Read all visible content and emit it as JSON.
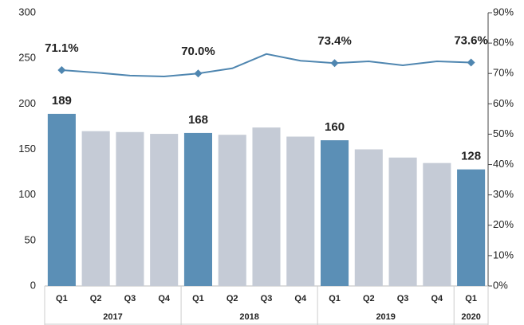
{
  "chart_data": {
    "type": "bar",
    "categories": [
      "Q1",
      "Q2",
      "Q3",
      "Q4",
      "Q1",
      "Q2",
      "Q3",
      "Q4",
      "Q1",
      "Q2",
      "Q3",
      "Q4",
      "Q1"
    ],
    "years": [
      "2017",
      null,
      null,
      null,
      "2018",
      null,
      null,
      null,
      "2019",
      null,
      null,
      null,
      "2020"
    ],
    "series": [
      {
        "type": "bar",
        "values": [
          189,
          170,
          169,
          167,
          168,
          166,
          174,
          164,
          160,
          150,
          141,
          135,
          128
        ],
        "value_labels": [
          "189",
          null,
          null,
          null,
          "168",
          null,
          null,
          null,
          "160",
          null,
          null,
          null,
          "128"
        ],
        "colors": [
          "#5b8fb6",
          "#c5cbd6",
          "#c5cbd6",
          "#c5cbd6",
          "#5b8fb6",
          "#c5cbd6",
          "#c5cbd6",
          "#c5cbd6",
          "#5b8fb6",
          "#c5cbd6",
          "#c5cbd6",
          "#c5cbd6",
          "#5b8fb6"
        ]
      },
      {
        "type": "line",
        "axis": "y2",
        "color": "#4f86b0",
        "values": [
          71.1,
          70.3,
          69.3,
          69.0,
          70.0,
          71.7,
          76.4,
          74.2,
          73.4,
          74.0,
          72.7,
          74.0,
          73.6
        ],
        "value_labels": [
          "71.1%",
          null,
          null,
          null,
          "70.0%",
          null,
          null,
          null,
          "73.4%",
          null,
          null,
          null,
          "73.6%"
        ]
      }
    ],
    "ylim": [
      0,
      300
    ],
    "yticks": [
      0,
      50,
      100,
      150,
      200,
      250,
      300
    ],
    "y2lim": [
      0,
      90
    ],
    "y2ticks": [
      {
        "value": 0,
        "label": "0%"
      },
      {
        "value": 10,
        "label": "10%"
      },
      {
        "value": 20,
        "label": "20%"
      },
      {
        "value": 30,
        "label": "30%"
      },
      {
        "value": 40,
        "label": "40%"
      },
      {
        "value": 50,
        "label": "50%"
      },
      {
        "value": 60,
        "label": "60%"
      },
      {
        "value": 70,
        "label": "70%"
      },
      {
        "value": 80,
        "label": "80%"
      },
      {
        "value": 90,
        "label": "90%"
      }
    ]
  }
}
